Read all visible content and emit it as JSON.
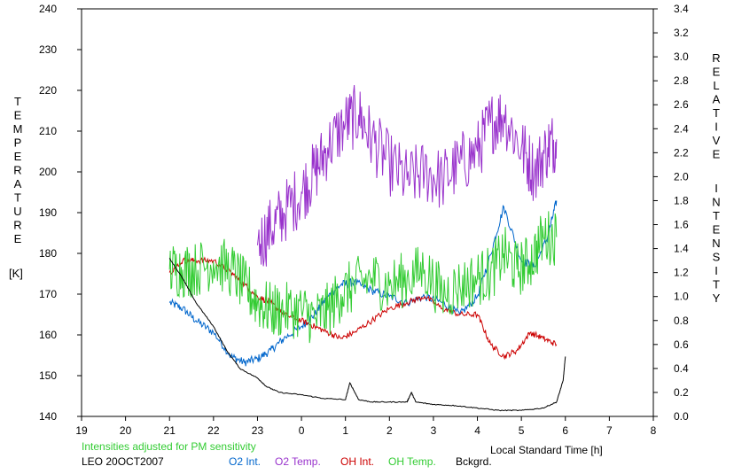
{
  "chart_data": {
    "type": "line",
    "xlabel": "Local Standard Time [h]",
    "x_ticks": [
      "19",
      "20",
      "21",
      "22",
      "23",
      "0",
      "1",
      "2",
      "3",
      "4",
      "5",
      "6",
      "7",
      "8"
    ],
    "left_axis": {
      "label_letters": [
        "T",
        "E",
        "M",
        "P",
        "E",
        "R",
        "A",
        "T",
        "U",
        "R",
        "E"
      ],
      "unit": "[K]",
      "ylim": [
        140,
        240
      ],
      "ticks": [
        "140",
        "150",
        "160",
        "170",
        "180",
        "190",
        "200",
        "210",
        "220",
        "230",
        "240"
      ]
    },
    "right_axis": {
      "label_word1": [
        "R",
        "E",
        "L",
        "A",
        "T",
        "I",
        "V",
        "E"
      ],
      "label_word2": [
        "I",
        "N",
        "T",
        "E",
        "N",
        "S",
        "I",
        "T",
        "Y"
      ],
      "ylim": [
        0.0,
        3.4
      ],
      "ticks": [
        "0.0",
        "0.2",
        "0.4",
        "0.6",
        "0.8",
        "1.0",
        "1.2",
        "1.4",
        "1.6",
        "1.8",
        "2.0",
        "2.2",
        "2.4",
        "2.6",
        "2.8",
        "3.0",
        "3.2",
        "3.4"
      ]
    },
    "xlim": [
      19,
      32
    ],
    "note": "Intensities adjusted for PM sensitivity",
    "station": "LEO 20OCT2007",
    "series": [
      {
        "name": "O2 Int.",
        "axis": "right",
        "color": "#0066cc",
        "x": [
          21.0,
          21.3,
          21.6,
          22.0,
          22.4,
          22.7,
          23.0,
          23.3,
          23.6,
          24.0,
          24.3,
          24.6,
          24.9,
          25.2,
          25.6,
          26.0,
          26.4,
          26.8,
          27.2,
          27.6,
          28.0,
          28.3,
          28.6,
          29.0,
          29.3,
          29.6,
          29.8
        ],
        "y": [
          0.95,
          0.9,
          0.8,
          0.7,
          0.5,
          0.45,
          0.48,
          0.55,
          0.65,
          0.75,
          0.85,
          1.0,
          1.1,
          1.12,
          1.05,
          1.0,
          0.95,
          1.0,
          0.95,
          0.85,
          1.0,
          1.35,
          1.75,
          1.3,
          1.25,
          1.5,
          1.8
        ]
      },
      {
        "name": "O2 Temp.",
        "axis": "left",
        "color": "#9933cc",
        "x": [
          23.0,
          23.3,
          23.6,
          24.0,
          24.3,
          24.6,
          25.0,
          25.3,
          25.6,
          26.0,
          26.4,
          26.8,
          27.2,
          27.6,
          28.0,
          28.3,
          28.6,
          29.0,
          29.3,
          29.6,
          29.8
        ],
        "y": [
          182,
          186,
          190,
          195,
          200,
          206,
          212,
          214,
          208,
          202,
          198,
          200,
          198,
          202,
          205,
          212,
          214,
          206,
          200,
          206,
          208
        ]
      },
      {
        "name": "OH Int.",
        "axis": "right",
        "color": "#cc0000",
        "x": [
          21.0,
          21.3,
          21.6,
          22.0,
          22.4,
          22.7,
          23.0,
          23.3,
          23.6,
          24.0,
          24.3,
          24.6,
          24.9,
          25.2,
          25.6,
          26.0,
          26.4,
          26.8,
          27.2,
          27.6,
          28.0,
          28.3,
          28.6,
          28.9,
          29.2,
          29.5,
          29.8
        ],
        "y": [
          1.2,
          1.3,
          1.3,
          1.3,
          1.2,
          1.1,
          1.0,
          0.95,
          0.85,
          0.8,
          0.75,
          0.7,
          0.65,
          0.7,
          0.8,
          0.9,
          0.95,
          1.0,
          0.9,
          0.85,
          0.85,
          0.6,
          0.5,
          0.55,
          0.7,
          0.65,
          0.6
        ]
      },
      {
        "name": "OH Temp.",
        "axis": "left",
        "color": "#33cc33",
        "x": [
          21.0,
          21.3,
          21.6,
          22.0,
          22.4,
          22.7,
          23.0,
          23.3,
          23.6,
          24.0,
          24.3,
          24.6,
          24.9,
          25.2,
          25.6,
          26.0,
          26.4,
          26.8,
          27.2,
          27.6,
          28.0,
          28.3,
          28.6,
          28.9,
          29.2,
          29.5,
          29.8
        ],
        "y": [
          176,
          176,
          176,
          178,
          176,
          172,
          168,
          166,
          166,
          166,
          164,
          166,
          170,
          172,
          174,
          172,
          174,
          176,
          170,
          172,
          174,
          175,
          180,
          176,
          178,
          184,
          184
        ]
      },
      {
        "name": "Bckgrd.",
        "axis": "right",
        "color": "#000000",
        "x": [
          21.0,
          21.3,
          21.6,
          22.0,
          22.3,
          22.6,
          23.0,
          23.2,
          23.5,
          24.0,
          24.5,
          25.0,
          25.1,
          25.3,
          25.6,
          26.0,
          26.4,
          26.5,
          26.6,
          27.0,
          27.5,
          28.0,
          28.5,
          29.0,
          29.5,
          29.8,
          29.95,
          30.0
        ],
        "y": [
          1.32,
          1.15,
          0.95,
          0.75,
          0.55,
          0.4,
          0.32,
          0.25,
          0.2,
          0.18,
          0.15,
          0.14,
          0.28,
          0.14,
          0.12,
          0.12,
          0.12,
          0.2,
          0.12,
          0.1,
          0.09,
          0.07,
          0.05,
          0.05,
          0.07,
          0.12,
          0.3,
          0.5
        ]
      }
    ]
  }
}
